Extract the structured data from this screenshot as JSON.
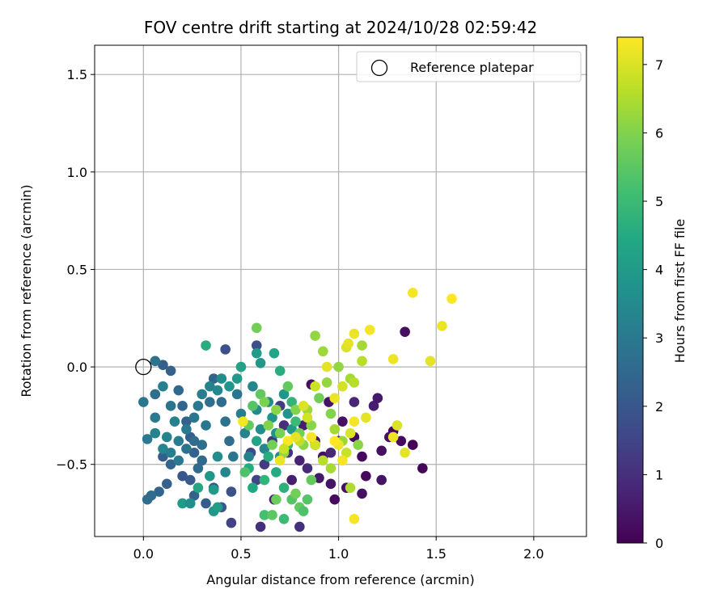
{
  "chart_data": {
    "type": "scatter",
    "title": "FOV centre drift starting at 2024/10/28 02:59:42",
    "xlabel": "Angular distance from reference (arcmin)",
    "ylabel": "Rotation from reference (arcmin)",
    "xlim": [
      -0.25,
      2.27
    ],
    "ylim": [
      -0.87,
      1.65
    ],
    "xticks": [
      0.0,
      0.5,
      1.0,
      1.5,
      2.0
    ],
    "xtick_labels": [
      "0.0",
      "0.5",
      "1.0",
      "1.5",
      "2.0"
    ],
    "yticks": [
      -0.5,
      0.0,
      0.5,
      1.0,
      1.5
    ],
    "ytick_labels": [
      "−0.5",
      "0.0",
      "0.5",
      "1.0",
      "1.5"
    ],
    "grid": true,
    "legend": {
      "placement": "top-right",
      "entries": [
        "Reference platepar"
      ]
    },
    "reference_point": {
      "label": "Reference platepar",
      "x": 0.0,
      "y": 0.0,
      "marker": "open-circle"
    },
    "colorbar": {
      "label": "Hours from first FF file",
      "range": [
        0,
        7.4
      ],
      "ticks": [
        0,
        1,
        2,
        3,
        4,
        5,
        6,
        7
      ],
      "tick_labels": [
        "0",
        "1",
        "2",
        "3",
        "4",
        "5",
        "6",
        "7"
      ],
      "colormap": "viridis"
    },
    "points": [
      {
        "x": 0.86,
        "y": -0.09,
        "c": 0.3
      },
      {
        "x": 0.95,
        "y": -0.18,
        "c": 0.4
      },
      {
        "x": 1.02,
        "y": -0.28,
        "c": 0.3
      },
      {
        "x": 1.08,
        "y": -0.36,
        "c": 0.2
      },
      {
        "x": 1.12,
        "y": -0.46,
        "c": 0.2
      },
      {
        "x": 1.22,
        "y": -0.43,
        "c": 0.3
      },
      {
        "x": 1.28,
        "y": -0.33,
        "c": 0.1
      },
      {
        "x": 1.32,
        "y": -0.38,
        "c": 0.2
      },
      {
        "x": 1.38,
        "y": -0.4,
        "c": 0.0
      },
      {
        "x": 1.34,
        "y": 0.18,
        "c": 0.3
      },
      {
        "x": 1.43,
        "y": -0.52,
        "c": 0.1
      },
      {
        "x": 1.22,
        "y": -0.58,
        "c": 0.4
      },
      {
        "x": 1.14,
        "y": -0.56,
        "c": 0.2
      },
      {
        "x": 1.12,
        "y": -0.65,
        "c": 0.3
      },
      {
        "x": 1.04,
        "y": -0.62,
        "c": 0.3
      },
      {
        "x": 0.98,
        "y": -0.68,
        "c": 0.2
      },
      {
        "x": 0.96,
        "y": -0.6,
        "c": 0.4
      },
      {
        "x": 0.9,
        "y": -0.57,
        "c": 0.5
      },
      {
        "x": 0.92,
        "y": -0.46,
        "c": 0.3
      },
      {
        "x": 0.88,
        "y": -0.38,
        "c": 0.5
      },
      {
        "x": 0.82,
        "y": -0.3,
        "c": 0.6
      },
      {
        "x": 0.8,
        "y": -0.48,
        "c": 0.7
      },
      {
        "x": 0.76,
        "y": -0.58,
        "c": 0.6
      },
      {
        "x": 0.8,
        "y": -0.82,
        "c": 1.0
      },
      {
        "x": 0.67,
        "y": -0.68,
        "c": 0.7
      },
      {
        "x": 0.6,
        "y": -0.82,
        "c": 1.0
      },
      {
        "x": 1.18,
        "y": -0.2,
        "c": 0.6
      },
      {
        "x": 1.2,
        "y": -0.16,
        "c": 0.5
      },
      {
        "x": 1.26,
        "y": -0.36,
        "c": 0.3
      },
      {
        "x": 1.08,
        "y": -0.18,
        "c": 0.8
      },
      {
        "x": 1.0,
        "y": -0.38,
        "c": 0.6
      },
      {
        "x": 0.96,
        "y": -0.44,
        "c": 0.8
      },
      {
        "x": 0.88,
        "y": -0.4,
        "c": 0.9
      },
      {
        "x": 0.84,
        "y": -0.52,
        "c": 0.9
      },
      {
        "x": 0.74,
        "y": -0.44,
        "c": 1.1
      },
      {
        "x": 0.72,
        "y": -0.3,
        "c": 1.0
      },
      {
        "x": 0.7,
        "y": -0.2,
        "c": 1.3
      },
      {
        "x": 0.66,
        "y": -0.38,
        "c": 1.2
      },
      {
        "x": 0.62,
        "y": -0.5,
        "c": 1.3
      },
      {
        "x": 0.58,
        "y": -0.58,
        "c": 1.5
      },
      {
        "x": 0.55,
        "y": -0.44,
        "c": 1.6
      },
      {
        "x": 0.58,
        "y": 0.11,
        "c": 1.8
      },
      {
        "x": 0.42,
        "y": 0.09,
        "c": 1.8
      },
      {
        "x": 0.45,
        "y": -0.8,
        "c": 1.4
      },
      {
        "x": 0.45,
        "y": -0.64,
        "c": 1.8
      },
      {
        "x": 0.4,
        "y": -0.72,
        "c": 2.0
      },
      {
        "x": 0.36,
        "y": -0.62,
        "c": 1.9
      },
      {
        "x": 0.32,
        "y": -0.7,
        "c": 2.2
      },
      {
        "x": 0.26,
        "y": -0.66,
        "c": 2.3
      },
      {
        "x": 0.24,
        "y": -0.58,
        "c": 2.1
      },
      {
        "x": 0.2,
        "y": -0.56,
        "c": 2.0
      },
      {
        "x": 0.14,
        "y": -0.5,
        "c": 2.4
      },
      {
        "x": 0.1,
        "y": -0.46,
        "c": 2.2
      },
      {
        "x": 0.12,
        "y": -0.6,
        "c": 2.3
      },
      {
        "x": 0.08,
        "y": -0.64,
        "c": 2.4
      },
      {
        "x": 0.04,
        "y": -0.66,
        "c": 2.6
      },
      {
        "x": 0.02,
        "y": -0.68,
        "c": 2.6
      },
      {
        "x": 0.06,
        "y": -0.14,
        "c": 2.7
      },
      {
        "x": 0.1,
        "y": 0.01,
        "c": 2.2
      },
      {
        "x": 0.14,
        "y": -0.02,
        "c": 2.3
      },
      {
        "x": 0.06,
        "y": 0.03,
        "c": 2.8
      },
      {
        "x": 0.0,
        "y": -0.18,
        "c": 2.9
      },
      {
        "x": 0.02,
        "y": -0.37,
        "c": 3.0
      },
      {
        "x": 0.06,
        "y": -0.26,
        "c": 3.0
      },
      {
        "x": 0.06,
        "y": -0.34,
        "c": 3.3
      },
      {
        "x": 0.1,
        "y": -0.1,
        "c": 3.2
      },
      {
        "x": 0.14,
        "y": -0.2,
        "c": 2.8
      },
      {
        "x": 0.18,
        "y": -0.12,
        "c": 2.5
      },
      {
        "x": 0.2,
        "y": -0.2,
        "c": 2.4
      },
      {
        "x": 0.22,
        "y": -0.28,
        "c": 2.3
      },
      {
        "x": 0.24,
        "y": -0.36,
        "c": 2.2
      },
      {
        "x": 0.26,
        "y": -0.44,
        "c": 2.3
      },
      {
        "x": 0.28,
        "y": -0.52,
        "c": 2.6
      },
      {
        "x": 0.3,
        "y": -0.4,
        "c": 2.7
      },
      {
        "x": 0.32,
        "y": -0.3,
        "c": 2.9
      },
      {
        "x": 0.34,
        "y": -0.18,
        "c": 2.7
      },
      {
        "x": 0.36,
        "y": -0.06,
        "c": 2.4
      },
      {
        "x": 0.4,
        "y": -0.18,
        "c": 2.6
      },
      {
        "x": 0.42,
        "y": -0.28,
        "c": 2.8
      },
      {
        "x": 0.44,
        "y": -0.38,
        "c": 2.6
      },
      {
        "x": 0.46,
        "y": -0.46,
        "c": 2.9
      },
      {
        "x": 0.48,
        "y": -0.14,
        "c": 2.9
      },
      {
        "x": 0.5,
        "y": -0.24,
        "c": 3.1
      },
      {
        "x": 0.52,
        "y": -0.34,
        "c": 3.3
      },
      {
        "x": 0.54,
        "y": -0.46,
        "c": 3.2
      },
      {
        "x": 0.56,
        "y": -0.1,
        "c": 3.4
      },
      {
        "x": 0.58,
        "y": -0.22,
        "c": 3.5
      },
      {
        "x": 0.6,
        "y": -0.32,
        "c": 3.6
      },
      {
        "x": 0.62,
        "y": -0.42,
        "c": 3.4
      },
      {
        "x": 0.64,
        "y": -0.18,
        "c": 3.6
      },
      {
        "x": 0.66,
        "y": -0.26,
        "c": 3.8
      },
      {
        "x": 0.68,
        "y": -0.34,
        "c": 3.7
      },
      {
        "x": 0.7,
        "y": -0.46,
        "c": 3.5
      },
      {
        "x": 0.72,
        "y": -0.14,
        "c": 3.9
      },
      {
        "x": 0.74,
        "y": -0.24,
        "c": 3.8
      },
      {
        "x": 0.76,
        "y": -0.32,
        "c": 4.0
      },
      {
        "x": 0.6,
        "y": 0.02,
        "c": 3.9
      },
      {
        "x": 0.58,
        "y": 0.07,
        "c": 4.0
      },
      {
        "x": 0.67,
        "y": 0.07,
        "c": 4.3
      },
      {
        "x": 0.7,
        "y": -0.02,
        "c": 4.6
      },
      {
        "x": 0.5,
        "y": 0.0,
        "c": 4.2
      },
      {
        "x": 0.48,
        "y": -0.06,
        "c": 4.0
      },
      {
        "x": 0.44,
        "y": -0.1,
        "c": 3.8
      },
      {
        "x": 0.4,
        "y": -0.06,
        "c": 3.6
      },
      {
        "x": 0.38,
        "y": -0.12,
        "c": 3.4
      },
      {
        "x": 0.34,
        "y": -0.1,
        "c": 3.3
      },
      {
        "x": 0.3,
        "y": -0.14,
        "c": 3.1
      },
      {
        "x": 0.28,
        "y": -0.2,
        "c": 3.0
      },
      {
        "x": 0.26,
        "y": -0.26,
        "c": 2.9
      },
      {
        "x": 0.22,
        "y": -0.32,
        "c": 3.0
      },
      {
        "x": 0.18,
        "y": -0.38,
        "c": 3.1
      },
      {
        "x": 0.16,
        "y": -0.28,
        "c": 3.2
      },
      {
        "x": 0.12,
        "y": -0.36,
        "c": 3.3
      },
      {
        "x": 0.1,
        "y": -0.42,
        "c": 3.4
      },
      {
        "x": 0.14,
        "y": -0.44,
        "c": 3.1
      },
      {
        "x": 0.18,
        "y": -0.48,
        "c": 3.0
      },
      {
        "x": 0.22,
        "y": -0.42,
        "c": 2.8
      },
      {
        "x": 0.26,
        "y": -0.38,
        "c": 2.6
      },
      {
        "x": 0.3,
        "y": -0.48,
        "c": 2.5
      },
      {
        "x": 0.34,
        "y": -0.56,
        "c": 3.9
      },
      {
        "x": 0.38,
        "y": -0.46,
        "c": 3.6
      },
      {
        "x": 0.42,
        "y": -0.54,
        "c": 3.4
      },
      {
        "x": 0.36,
        "y": -0.74,
        "c": 3.9
      },
      {
        "x": 0.38,
        "y": -0.72,
        "c": 4.1
      },
      {
        "x": 0.2,
        "y": -0.7,
        "c": 4.0
      },
      {
        "x": 0.24,
        "y": -0.7,
        "c": 3.6
      },
      {
        "x": 0.36,
        "y": -0.63,
        "c": 4.0
      },
      {
        "x": 0.28,
        "y": -0.62,
        "c": 4.4
      },
      {
        "x": 0.32,
        "y": 0.11,
        "c": 4.6
      },
      {
        "x": 0.54,
        "y": -0.52,
        "c": 4.5
      },
      {
        "x": 0.56,
        "y": -0.62,
        "c": 4.4
      },
      {
        "x": 0.58,
        "y": -0.38,
        "c": 4.3
      },
      {
        "x": 0.62,
        "y": -0.58,
        "c": 4.8
      },
      {
        "x": 0.64,
        "y": -0.46,
        "c": 4.6
      },
      {
        "x": 0.68,
        "y": -0.54,
        "c": 4.5
      },
      {
        "x": 0.72,
        "y": -0.62,
        "c": 4.7
      },
      {
        "x": 0.74,
        "y": -0.4,
        "c": 4.9
      },
      {
        "x": 0.76,
        "y": -0.18,
        "c": 4.8
      },
      {
        "x": 0.78,
        "y": -0.28,
        "c": 5.0
      },
      {
        "x": 0.62,
        "y": -0.76,
        "c": 5.2
      },
      {
        "x": 0.66,
        "y": -0.76,
        "c": 5.5
      },
      {
        "x": 0.68,
        "y": -0.68,
        "c": 5.7
      },
      {
        "x": 0.72,
        "y": -0.78,
        "c": 5.0
      },
      {
        "x": 0.76,
        "y": -0.68,
        "c": 5.4
      },
      {
        "x": 0.8,
        "y": -0.72,
        "c": 5.6
      },
      {
        "x": 0.82,
        "y": -0.74,
        "c": 5.3
      },
      {
        "x": 0.84,
        "y": -0.68,
        "c": 5.4
      },
      {
        "x": 0.78,
        "y": -0.65,
        "c": 5.8
      },
      {
        "x": 0.86,
        "y": -0.58,
        "c": 5.6
      },
      {
        "x": 0.52,
        "y": -0.54,
        "c": 5.3
      },
      {
        "x": 0.54,
        "y": -0.3,
        "c": 5.6
      },
      {
        "x": 0.56,
        "y": -0.2,
        "c": 5.4
      },
      {
        "x": 0.58,
        "y": 0.2,
        "c": 5.8
      },
      {
        "x": 0.6,
        "y": -0.14,
        "c": 5.6
      },
      {
        "x": 0.62,
        "y": -0.18,
        "c": 5.9
      },
      {
        "x": 0.64,
        "y": -0.3,
        "c": 6.0
      },
      {
        "x": 0.66,
        "y": -0.4,
        "c": 5.8
      },
      {
        "x": 0.68,
        "y": -0.22,
        "c": 6.1
      },
      {
        "x": 0.7,
        "y": -0.34,
        "c": 5.9
      },
      {
        "x": 0.72,
        "y": -0.44,
        "c": 6.2
      },
      {
        "x": 0.74,
        "y": -0.1,
        "c": 5.6
      },
      {
        "x": 0.78,
        "y": -0.22,
        "c": 6.0
      },
      {
        "x": 0.8,
        "y": -0.34,
        "c": 5.8
      },
      {
        "x": 0.82,
        "y": -0.4,
        "c": 6.1
      },
      {
        "x": 0.84,
        "y": -0.22,
        "c": 6.3
      },
      {
        "x": 0.86,
        "y": -0.3,
        "c": 6.1
      },
      {
        "x": 0.88,
        "y": 0.16,
        "c": 6.2
      },
      {
        "x": 0.9,
        "y": -0.16,
        "c": 5.8
      },
      {
        "x": 0.92,
        "y": 0.08,
        "c": 6.3
      },
      {
        "x": 0.94,
        "y": -0.08,
        "c": 6.2
      },
      {
        "x": 0.96,
        "y": -0.24,
        "c": 6.0
      },
      {
        "x": 0.98,
        "y": -0.32,
        "c": 6.4
      },
      {
        "x": 1.0,
        "y": 0.0,
        "c": 6.2
      },
      {
        "x": 1.02,
        "y": -0.38,
        "c": 6.3
      },
      {
        "x": 1.06,
        "y": -0.06,
        "c": 6.4
      },
      {
        "x": 1.08,
        "y": -0.08,
        "c": 6.6
      },
      {
        "x": 1.1,
        "y": -0.4,
        "c": 6.1
      },
      {
        "x": 1.12,
        "y": 0.11,
        "c": 6.4
      },
      {
        "x": 1.12,
        "y": 0.03,
        "c": 6.6
      },
      {
        "x": 1.06,
        "y": -0.62,
        "c": 6.5
      },
      {
        "x": 1.04,
        "y": -0.44,
        "c": 6.8
      },
      {
        "x": 0.96,
        "y": -0.52,
        "c": 6.4
      },
      {
        "x": 0.92,
        "y": -0.48,
        "c": 6.6
      },
      {
        "x": 0.88,
        "y": -0.1,
        "c": 6.8
      },
      {
        "x": 0.82,
        "y": -0.2,
        "c": 7.0
      },
      {
        "x": 0.84,
        "y": -0.26,
        "c": 6.9
      },
      {
        "x": 0.8,
        "y": -0.38,
        "c": 6.7
      },
      {
        "x": 0.78,
        "y": -0.36,
        "c": 7.1
      },
      {
        "x": 0.7,
        "y": -0.48,
        "c": 7.2
      },
      {
        "x": 0.51,
        "y": -0.28,
        "c": 7.3
      },
      {
        "x": 0.94,
        "y": 0.0,
        "c": 7.1
      },
      {
        "x": 0.98,
        "y": -0.16,
        "c": 7.2
      },
      {
        "x": 1.02,
        "y": -0.1,
        "c": 6.9
      },
      {
        "x": 1.04,
        "y": 0.1,
        "c": 7.0
      },
      {
        "x": 1.05,
        "y": 0.12,
        "c": 7.1
      },
      {
        "x": 1.08,
        "y": 0.17,
        "c": 7.2
      },
      {
        "x": 1.16,
        "y": 0.19,
        "c": 7.3
      },
      {
        "x": 1.14,
        "y": -0.26,
        "c": 7.1
      },
      {
        "x": 1.08,
        "y": -0.28,
        "c": 7.3
      },
      {
        "x": 1.06,
        "y": -0.34,
        "c": 7.0
      },
      {
        "x": 1.02,
        "y": -0.48,
        "c": 7.3
      },
      {
        "x": 1.0,
        "y": -0.4,
        "c": 7.2
      },
      {
        "x": 0.98,
        "y": -0.38,
        "c": 7.4
      },
      {
        "x": 1.08,
        "y": -0.78,
        "c": 7.3
      },
      {
        "x": 1.3,
        "y": -0.3,
        "c": 7.0
      },
      {
        "x": 1.28,
        "y": -0.36,
        "c": 7.2
      },
      {
        "x": 1.34,
        "y": -0.44,
        "c": 7.1
      },
      {
        "x": 1.28,
        "y": 0.04,
        "c": 7.2
      },
      {
        "x": 1.38,
        "y": 0.38,
        "c": 7.3
      },
      {
        "x": 1.47,
        "y": 0.03,
        "c": 7.1
      },
      {
        "x": 1.53,
        "y": 0.21,
        "c": 7.2
      },
      {
        "x": 1.58,
        "y": 0.35,
        "c": 7.4
      },
      {
        "x": 0.88,
        "y": -0.4,
        "c": 6.9
      },
      {
        "x": 0.86,
        "y": -0.36,
        "c": 7.3
      },
      {
        "x": 0.74,
        "y": -0.38,
        "c": 7.4
      },
      {
        "x": 0.72,
        "y": -0.42,
        "c": 6.8
      }
    ]
  }
}
